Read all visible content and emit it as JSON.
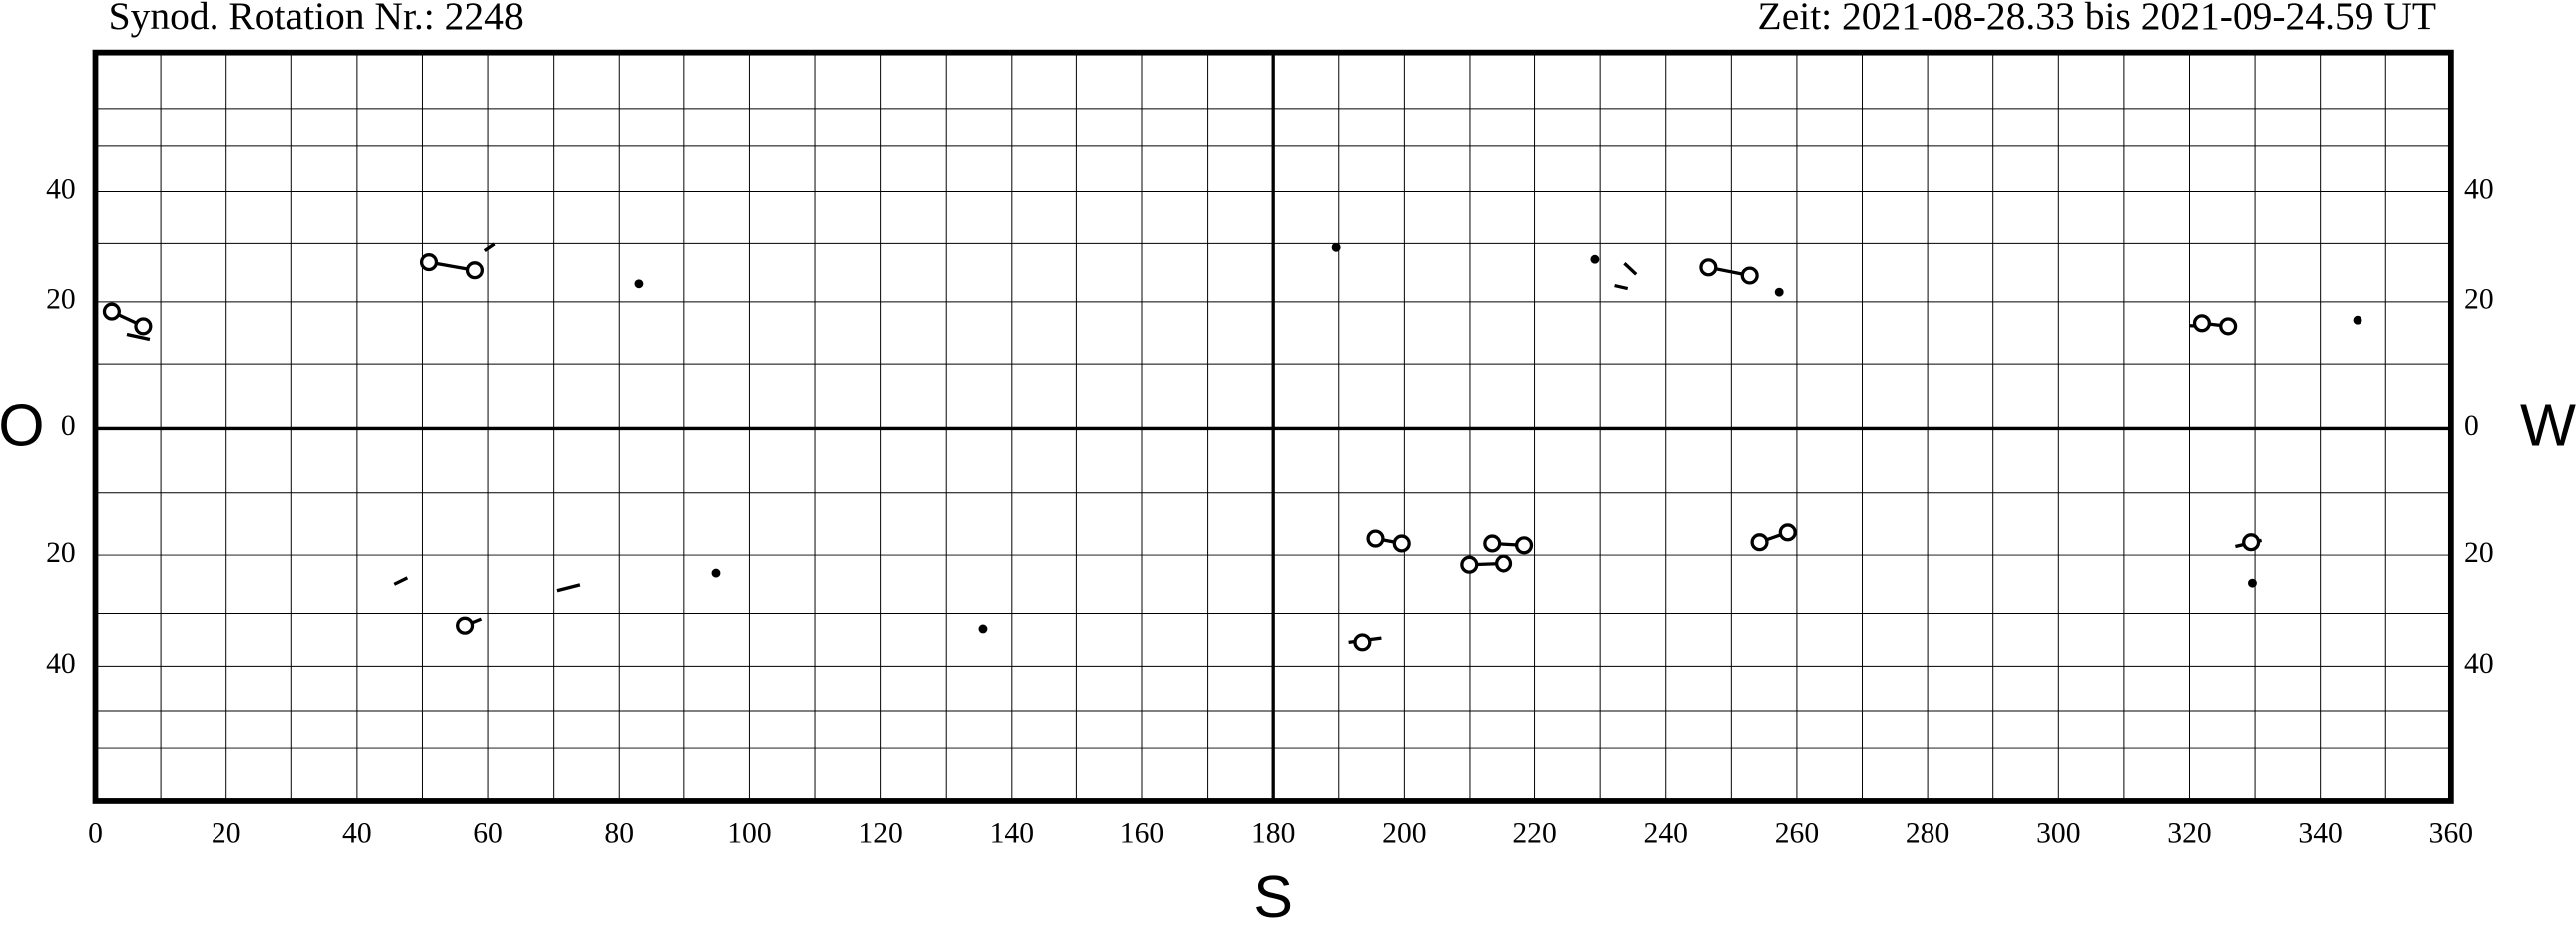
{
  "chart_data": {
    "type": "synoptic-map",
    "title": "Synod. Rotation Nr.: 2248",
    "subtitle": "Zeit: 2021-08-28.33 bis 2021-09-24.59 UT",
    "left_label": "O",
    "right_label": "W",
    "bottom_label": "S",
    "yscale": "sine",
    "xlim": [
      0,
      360
    ],
    "ylim": [
      -90,
      90
    ],
    "xticks": [
      0,
      20,
      40,
      60,
      80,
      100,
      120,
      140,
      160,
      180,
      200,
      220,
      240,
      260,
      280,
      300,
      320,
      340,
      360
    ],
    "yticks": [
      {
        "value": 40,
        "label": "40"
      },
      {
        "value": 20,
        "label": "20"
      },
      0,
      {
        "value": -20,
        "label": "20"
      },
      {
        "value": -40,
        "label": "40"
      }
    ],
    "xgrid": [
      10,
      20,
      30,
      40,
      50,
      60,
      70,
      80,
      90,
      100,
      110,
      120,
      130,
      140,
      150,
      160,
      170,
      190,
      200,
      210,
      220,
      230,
      240,
      250,
      260,
      270,
      280,
      290,
      300,
      310,
      320,
      330,
      340,
      350
    ],
    "ygrid": [
      60,
      50,
      40,
      30,
      20,
      10,
      -10,
      -20,
      -30,
      -40,
      -50,
      -60
    ],
    "axis_lines": {
      "x": 180,
      "y": 0
    },
    "groups": [
      {
        "marker": "circle",
        "lon": [
          2.5,
          7.3
        ],
        "lat": [
          18.4,
          16.0
        ]
      },
      {
        "marker": "circle",
        "lon": [
          51.0,
          58.0
        ],
        "lat": [
          26.7,
          25.3
        ]
      },
      {
        "marker": "dot",
        "lon": [
          83.0
        ],
        "lat": [
          23.0
        ]
      },
      {
        "marker": "dot",
        "lon": [
          189.6
        ],
        "lat": [
          29.3
        ]
      },
      {
        "marker": "dot",
        "lon": [
          229.2
        ],
        "lat": [
          27.2
        ]
      },
      {
        "marker": "circle",
        "lon": [
          246.5,
          252.8
        ],
        "lat": [
          25.8,
          24.4
        ]
      },
      {
        "marker": "dot",
        "lon": [
          257.3
        ],
        "lat": [
          21.6
        ]
      },
      {
        "marker": "circle",
        "lon": [
          321.9,
          325.9
        ],
        "lat": [
          16.5,
          16.0
        ]
      },
      {
        "marker": "dot",
        "lon": [
          345.7
        ],
        "lat": [
          17.0
        ]
      },
      {
        "marker": "circle",
        "lon": [
          56.5
        ],
        "lat": [
          -32.2
        ]
      },
      {
        "marker": "dot",
        "lon": [
          94.9
        ],
        "lat": [
          -23.0
        ]
      },
      {
        "marker": "dot",
        "lon": [
          135.6
        ],
        "lat": [
          -32.8
        ]
      },
      {
        "marker": "circle",
        "lon": [
          195.6,
          199.6
        ],
        "lat": [
          -17.3,
          -18.1
        ]
      },
      {
        "marker": "circle",
        "lon": [
          193.6
        ],
        "lat": [
          -35.3
        ]
      },
      {
        "marker": "circle",
        "lon": [
          209.9,
          215.2
        ],
        "lat": [
          -21.6,
          -21.4
        ]
      },
      {
        "marker": "circle",
        "lon": [
          213.4,
          218.4
        ],
        "lat": [
          -18.1,
          -18.4
        ]
      },
      {
        "marker": "circle",
        "lon": [
          254.3,
          258.6
        ],
        "lat": [
          -17.9,
          -16.3
        ]
      },
      {
        "marker": "circle",
        "lon": [
          329.4
        ],
        "lat": [
          -17.9
        ]
      },
      {
        "marker": "dot",
        "lon": [
          329.6
        ],
        "lat": [
          -24.7
        ]
      }
    ],
    "segments": [
      {
        "lon": [
          4.8,
          8.3
        ],
        "lat": [
          14.7,
          13.9
        ]
      },
      {
        "lon": [
          59.5,
          61.0
        ],
        "lat": [
          28.7,
          29.9
        ]
      },
      {
        "lon": [
          232.2,
          234.2
        ],
        "lat": [
          22.7,
          22.2
        ]
      },
      {
        "lon": [
          233.7,
          235.5
        ],
        "lat": [
          26.5,
          24.6
        ]
      },
      {
        "lon": [
          45.7,
          47.7
        ],
        "lat": [
          -24.9,
          -23.8
        ]
      },
      {
        "lon": [
          56.5,
          59.0
        ],
        "lat": [
          -32.2,
          -31.0
        ]
      },
      {
        "lon": [
          70.5,
          74.0
        ],
        "lat": [
          -26.0,
          -25.0
        ]
      },
      {
        "lon": [
          191.5,
          196.5
        ],
        "lat": [
          -35.3,
          -34.5
        ]
      },
      {
        "lon": [
          320.0,
          322.5
        ],
        "lat": [
          16.1,
          16.0
        ]
      },
      {
        "lon": [
          327.0,
          331.0
        ],
        "lat": [
          -18.6,
          -17.6
        ]
      }
    ]
  }
}
